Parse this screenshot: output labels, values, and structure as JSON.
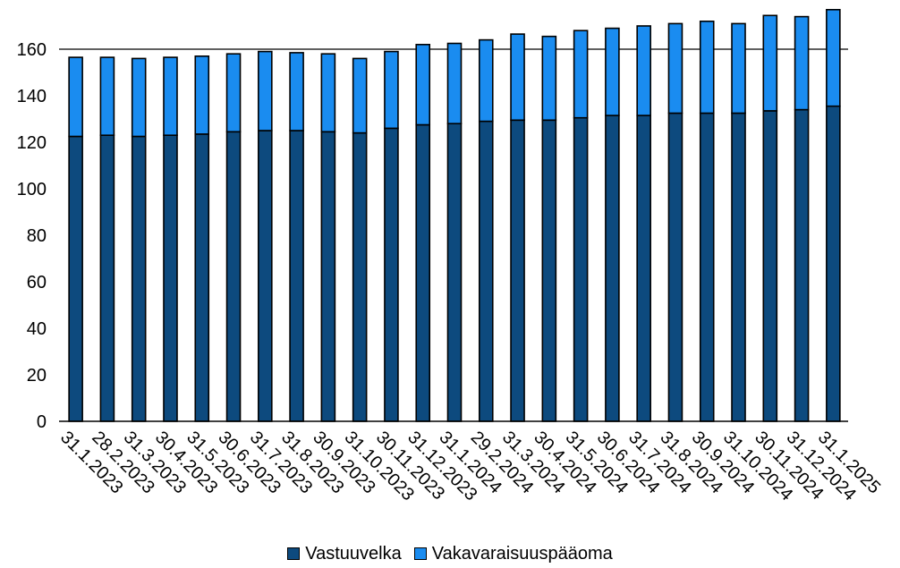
{
  "chart_data": {
    "type": "bar",
    "stacked": true,
    "title": "",
    "xlabel": "",
    "ylabel": "",
    "ylim": [
      0,
      170
    ],
    "yticks": [
      0,
      20,
      40,
      60,
      80,
      100,
      120,
      140,
      160
    ],
    "grid": "horizontal line at 160",
    "legend_position": "bottom",
    "categories": [
      "31.1.2023",
      "28.2.2023",
      "31.3.2023",
      "30.4.2023",
      "31.5.2023",
      "30.6.2023",
      "31.7.2023",
      "31.8.2023",
      "30.9.2023",
      "31.10.2023",
      "30.11.2023",
      "31.12.2023",
      "31.1.2024",
      "29.2.2024",
      "31.3.2024",
      "30.4.2024",
      "31.5.2024",
      "30.6.2024",
      "31.7.2024",
      "31.8.2024",
      "30.9.2024",
      "31.10.2024",
      "30.11.2024",
      "31.12.2024",
      "31.1.2025"
    ],
    "series": [
      {
        "name": "Vastuuvelka",
        "color": "#0d4a7e",
        "values": [
          122.5,
          123,
          122.5,
          123,
          123.5,
          124.5,
          125,
          125,
          124.5,
          124,
          126,
          127.5,
          128,
          129,
          129.5,
          129.5,
          130.5,
          131.5,
          131.5,
          132.5,
          132.5,
          132.5,
          133.5,
          134,
          135.5
        ]
      },
      {
        "name": "Vakavaraisuuspääoma",
        "color": "#1a8cf0",
        "values": [
          34,
          33.5,
          33.5,
          33.5,
          33.5,
          33.5,
          34,
          33.5,
          33.5,
          32,
          33,
          34.5,
          34.5,
          35,
          37,
          36,
          37.5,
          37.5,
          38.5,
          38.5,
          39.5,
          38.5,
          41,
          40,
          41.5
        ]
      }
    ]
  }
}
